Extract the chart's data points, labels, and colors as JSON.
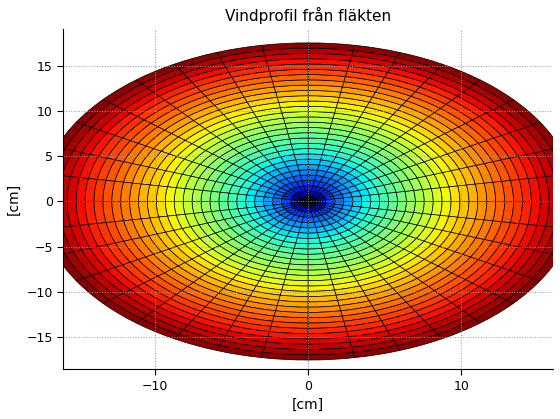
{
  "title": "Vindprofil från fläkten",
  "xlabel": "[cm]",
  "ylabel": "[cm]",
  "xlim": [
    -16,
    16
  ],
  "ylim": [
    -18.5,
    19
  ],
  "xticks": [
    -10,
    0,
    10
  ],
  "yticks": [
    -15,
    -10,
    -5,
    0,
    5,
    10,
    15
  ],
  "R_max": 17.5,
  "v_min": 0.2,
  "v_max": 4.8,
  "n_r": 30,
  "n_theta": 36,
  "background_color": "#ffffff",
  "grid_color": "black",
  "grid_linewidth": 0.5,
  "colormap": "jet",
  "figsize": [
    5.6,
    4.19
  ],
  "dpi": 100,
  "title_fontsize": 11,
  "label_fontsize": 10
}
